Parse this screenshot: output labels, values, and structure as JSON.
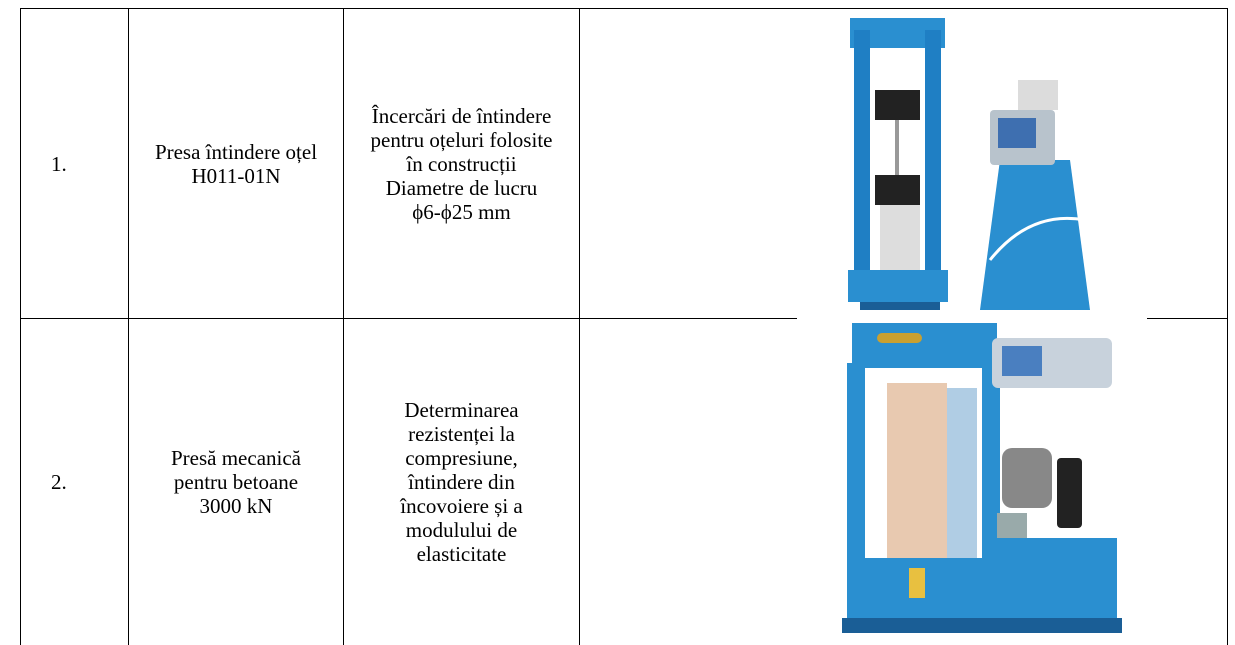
{
  "table": {
    "rows": [
      {
        "number": "1.",
        "name": [
          "Presa întindere oțel",
          "H011-01N"
        ],
        "description": [
          "Încercări de întindere",
          "pentru oțeluri folosite",
          "în construcții",
          "Diametre de lucru",
          "ϕ6-ϕ25 mm"
        ]
      },
      {
        "number": "2.",
        "name": [
          "Presă mecanică",
          "pentru betoane",
          "3000 kN"
        ],
        "description": [
          "Determinarea",
          "rezistenței la",
          "compresiune,",
          "întindere din",
          "încovoiere și a",
          "modulului de",
          "elasticitate"
        ]
      }
    ]
  }
}
